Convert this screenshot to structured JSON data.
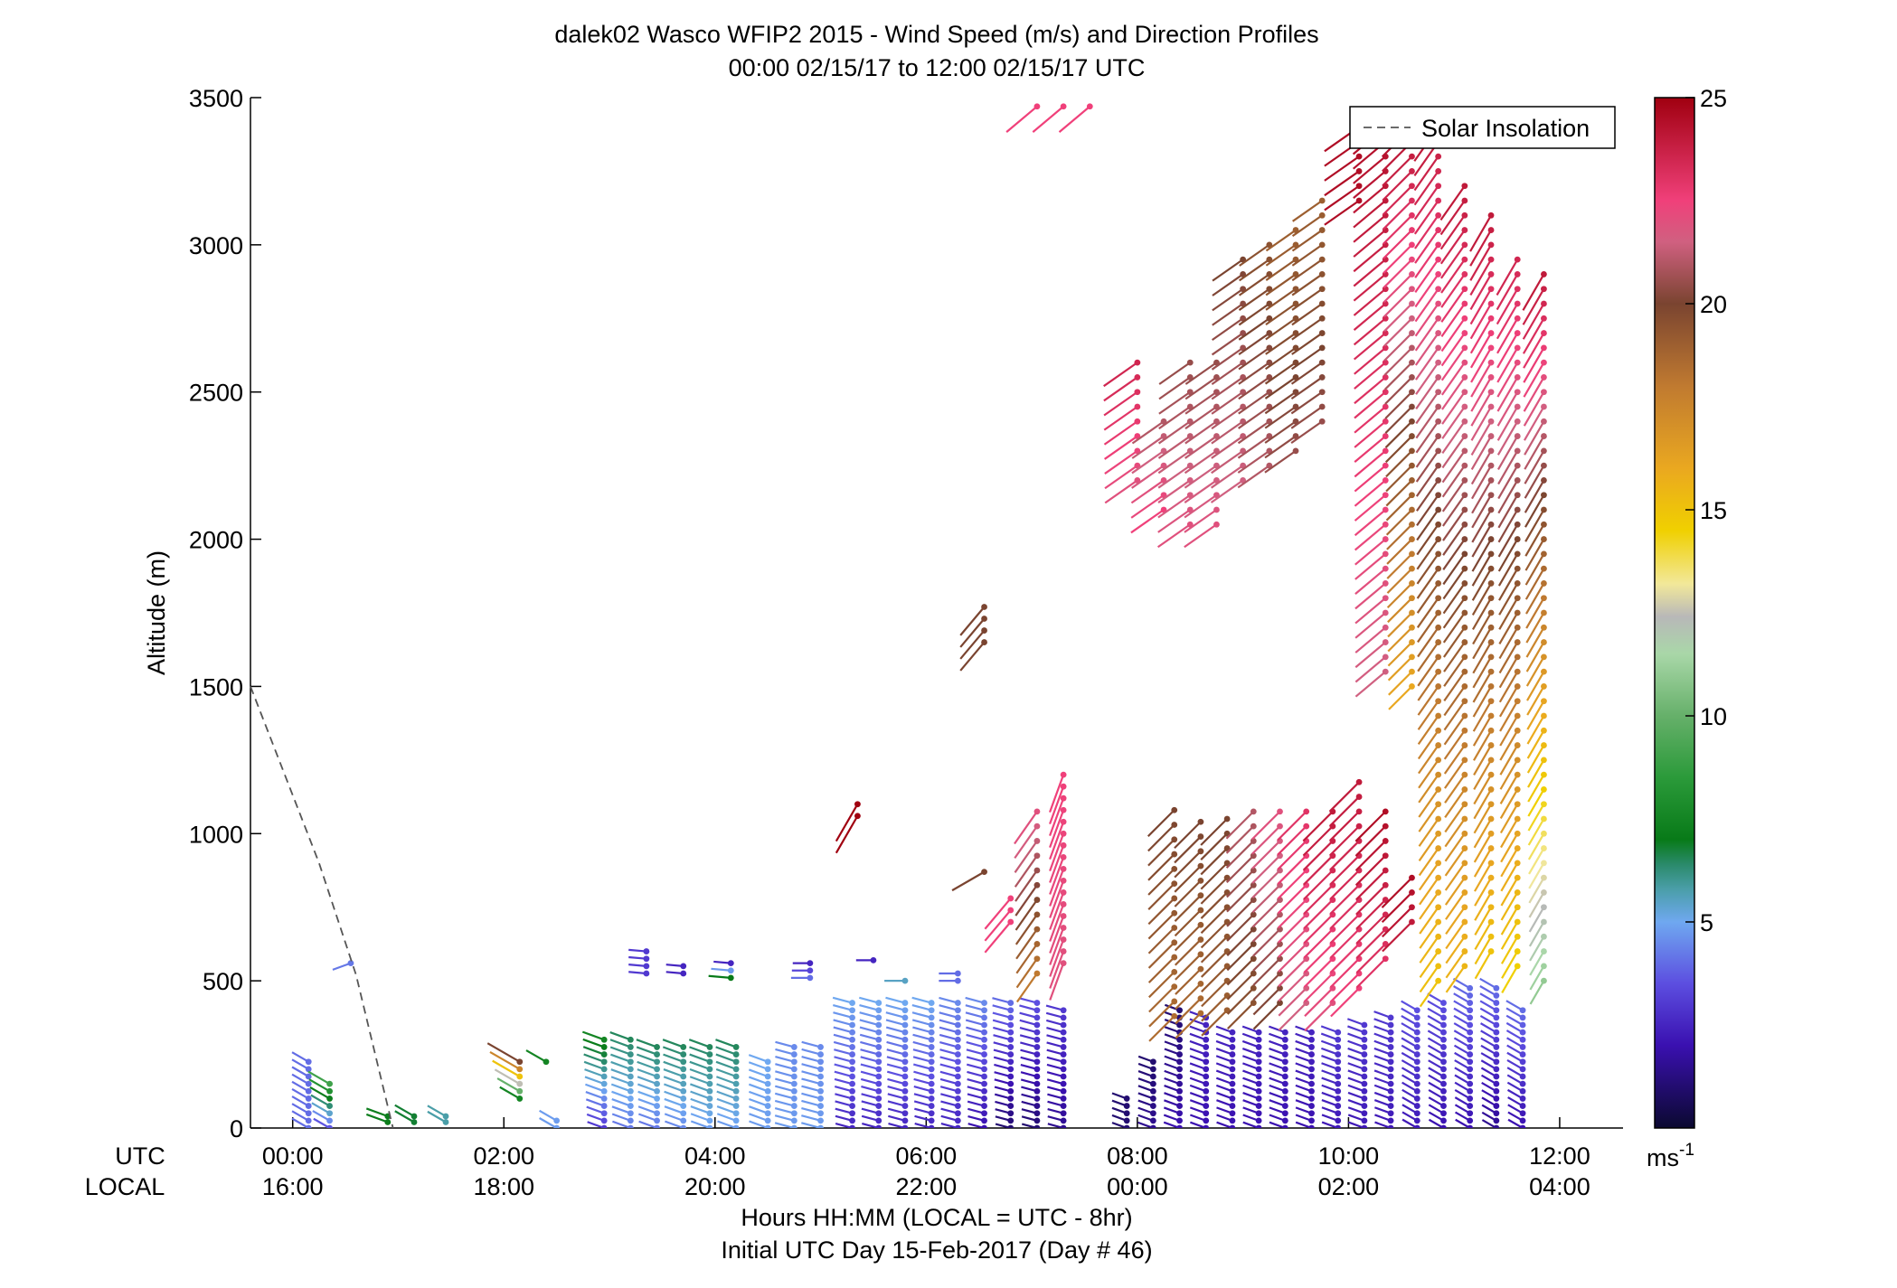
{
  "chart_data": {
    "type": "wind-barb-profile",
    "title": "dalek02 Wasco WFIP2 2015 - Wind Speed (m/s) and Direction Profiles",
    "subtitle": "00:00 02/15/17 to 12:00 02/15/17  UTC",
    "ylabel": "Altitude (m)",
    "xlabel": "Hours HH:MM  (LOCAL = UTC - 8hr)",
    "xlabel2": "Initial UTC Day 15-Feb-2017 (Day # 46)",
    "row_label_utc": "UTC",
    "row_label_local": "LOCAL",
    "xlim_hours": [
      -0.4,
      12.6
    ],
    "ylim": [
      0,
      3500
    ],
    "y_ticks": [
      0,
      500,
      1000,
      1500,
      2000,
      2500,
      3000,
      3500
    ],
    "x_tick_hours": [
      0,
      2,
      4,
      6,
      8,
      10,
      12
    ],
    "x_ticks_utc": [
      "00:00",
      "02:00",
      "04:00",
      "06:00",
      "08:00",
      "10:00",
      "12:00"
    ],
    "x_ticks_local": [
      "16:00",
      "18:00",
      "20:00",
      "22:00",
      "00:00",
      "02:00",
      "04:00"
    ],
    "legend": {
      "label": "Solar Insolation",
      "placement": "top-right"
    },
    "solar_insolation": {
      "style": "dashed",
      "color": "#555555",
      "points": [
        [
          -0.4,
          1500
        ],
        [
          0.25,
          900
        ],
        [
          0.6,
          520
        ],
        [
          0.95,
          0
        ]
      ]
    },
    "colorbar": {
      "min": 0,
      "max": 25,
      "ticks": [
        5,
        10,
        15,
        20,
        25
      ],
      "unit_label": "ms",
      "unit_exponent": "-1",
      "stops": [
        {
          "v": 0,
          "c": "#0b0930"
        },
        {
          "v": 2,
          "c": "#3a10b0"
        },
        {
          "v": 3.5,
          "c": "#5c4ee0"
        },
        {
          "v": 5,
          "c": "#6fa8f0"
        },
        {
          "v": 5.8,
          "c": "#4a9ea8"
        },
        {
          "v": 6.4,
          "c": "#2a8a6a"
        },
        {
          "v": 7,
          "c": "#087a18"
        },
        {
          "v": 8.5,
          "c": "#2b9a3a"
        },
        {
          "v": 10,
          "c": "#66b06a"
        },
        {
          "v": 11.5,
          "c": "#a9d7a8"
        },
        {
          "v": 12.4,
          "c": "#b8b8b8"
        },
        {
          "v": 13.2,
          "c": "#f2e89a"
        },
        {
          "v": 14.5,
          "c": "#f0d000"
        },
        {
          "v": 16,
          "c": "#eaa820"
        },
        {
          "v": 18,
          "c": "#c07a30"
        },
        {
          "v": 20,
          "c": "#7a4430"
        },
        {
          "v": 21.5,
          "c": "#d06080"
        },
        {
          "v": 22.5,
          "c": "#f0407a"
        },
        {
          "v": 25,
          "c": "#a00010"
        }
      ]
    },
    "profiles": [
      {
        "t": 0.15,
        "min": 0,
        "max": 225,
        "step": 25,
        "base_speed": 4.0,
        "top_speed": 4.0,
        "dir": 300
      },
      {
        "t": 0.35,
        "min": 0,
        "max": 150,
        "step": 25,
        "base_speed": 3.6,
        "top_speed": 9.0,
        "dir": 300
      },
      {
        "t": 0.55,
        "min": 560,
        "max": 560,
        "step": 25,
        "base_speed": 4.2,
        "top_speed": 4.2,
        "dir": 250
      },
      {
        "t": 0.9,
        "min": 20,
        "max": 40,
        "step": 20,
        "base_speed": 7.2,
        "top_speed": 7.2,
        "dir": 290
      },
      {
        "t": 1.15,
        "min": 20,
        "max": 40,
        "step": 20,
        "base_speed": 6.8,
        "top_speed": 6.8,
        "dir": 300
      },
      {
        "t": 1.45,
        "min": 20,
        "max": 40,
        "step": 20,
        "base_speed": 5.8,
        "top_speed": 5.8,
        "dir": 300
      },
      {
        "t": 2.15,
        "min": 100,
        "max": 225,
        "step": 25,
        "base_speed": 7.5,
        "top_speed": 20.0,
        "dir": 300
      },
      {
        "t": 2.4,
        "min": 225,
        "max": 225,
        "step": 25,
        "base_speed": 7.5,
        "top_speed": 7.5,
        "dir": 300
      },
      {
        "t": 2.5,
        "min": 0,
        "max": 25,
        "step": 25,
        "base_speed": 4.8,
        "top_speed": 4.8,
        "dir": 300
      },
      {
        "t": 2.95,
        "min": 0,
        "max": 300,
        "step": 25,
        "base_speed": 3.0,
        "top_speed": 7.5,
        "dir": 290
      },
      {
        "t": 3.2,
        "min": 0,
        "max": 300,
        "step": 25,
        "base_speed": 4.2,
        "top_speed": 6.5,
        "dir": 290
      },
      {
        "t": 3.45,
        "min": 0,
        "max": 275,
        "step": 25,
        "base_speed": 4.2,
        "top_speed": 6.5,
        "dir": 290
      },
      {
        "t": 3.7,
        "min": 0,
        "max": 275,
        "step": 25,
        "base_speed": 4.5,
        "top_speed": 6.5,
        "dir": 290
      },
      {
        "t": 3.95,
        "min": 0,
        "max": 275,
        "step": 25,
        "base_speed": 4.8,
        "top_speed": 6.5,
        "dir": 290
      },
      {
        "t": 4.2,
        "min": 0,
        "max": 275,
        "step": 25,
        "base_speed": 4.8,
        "top_speed": 6.5,
        "dir": 290
      },
      {
        "t": 4.5,
        "min": 0,
        "max": 225,
        "step": 25,
        "base_speed": 4.8,
        "top_speed": 5.0,
        "dir": 290
      },
      {
        "t": 4.75,
        "min": 0,
        "max": 275,
        "step": 25,
        "base_speed": 4.8,
        "top_speed": 4.5,
        "dir": 285
      },
      {
        "t": 5.0,
        "min": 0,
        "max": 275,
        "step": 25,
        "base_speed": 4.8,
        "top_speed": 4.5,
        "dir": 285
      },
      {
        "t": 5.3,
        "min": 0,
        "max": 425,
        "step": 25,
        "base_speed": 2.5,
        "top_speed": 5.0,
        "dir": 285
      },
      {
        "t": 5.55,
        "min": 0,
        "max": 425,
        "step": 25,
        "base_speed": 2.5,
        "top_speed": 5.0,
        "dir": 285
      },
      {
        "t": 5.8,
        "min": 0,
        "max": 425,
        "step": 25,
        "base_speed": 2.5,
        "top_speed": 5.0,
        "dir": 285
      },
      {
        "t": 6.05,
        "min": 0,
        "max": 425,
        "step": 25,
        "base_speed": 2.5,
        "top_speed": 5.0,
        "dir": 285
      },
      {
        "t": 6.3,
        "min": 0,
        "max": 425,
        "step": 25,
        "base_speed": 2.5,
        "top_speed": 4.5,
        "dir": 285
      },
      {
        "t": 6.55,
        "min": 0,
        "max": 425,
        "step": 25,
        "base_speed": 2.0,
        "top_speed": 4.5,
        "dir": 285
      },
      {
        "t": 6.8,
        "min": 0,
        "max": 425,
        "step": 25,
        "base_speed": 1.0,
        "top_speed": 4.0,
        "dir": 285
      },
      {
        "t": 7.05,
        "min": 0,
        "max": 425,
        "step": 25,
        "base_speed": 1.0,
        "top_speed": 3.5,
        "dir": 285
      },
      {
        "t": 7.3,
        "min": 0,
        "max": 400,
        "step": 25,
        "base_speed": 1.5,
        "top_speed": 3.0,
        "dir": 285
      },
      {
        "t": 3.35,
        "min": 525,
        "max": 600,
        "step": 25,
        "base_speed": 3.0,
        "top_speed": 3.0,
        "dir": 275
      },
      {
        "t": 3.7,
        "min": 525,
        "max": 560,
        "step": 25,
        "base_speed": 2.5,
        "top_speed": 2.5,
        "dir": 275
      },
      {
        "t": 4.15,
        "min": 510,
        "max": 560,
        "step": 25,
        "base_speed": 7.0,
        "top_speed": 2.5,
        "dir": 275
      },
      {
        "t": 4.9,
        "min": 510,
        "max": 570,
        "step": 25,
        "base_speed": 4.0,
        "top_speed": 2.5,
        "dir": 270
      },
      {
        "t": 5.5,
        "min": 570,
        "max": 570,
        "step": 25,
        "base_speed": 2.5,
        "top_speed": 2.5,
        "dir": 270
      },
      {
        "t": 5.8,
        "min": 500,
        "max": 500,
        "step": 25,
        "base_speed": 5.5,
        "top_speed": 5.5,
        "dir": 270
      },
      {
        "t": 6.3,
        "min": 500,
        "max": 525,
        "step": 25,
        "base_speed": 4.0,
        "top_speed": 4.0,
        "dir": 270
      },
      {
        "t": 5.35,
        "min": 1060,
        "max": 1100,
        "step": 40,
        "base_speed": 25.0,
        "top_speed": 25.0,
        "dir": 210
      },
      {
        "t": 6.55,
        "min": 1650,
        "max": 1770,
        "step": 40,
        "base_speed": 20.0,
        "top_speed": 20.0,
        "dir": 220
      },
      {
        "t": 6.55,
        "min": 870,
        "max": 870,
        "step": 25,
        "base_speed": 20.0,
        "top_speed": 20.0,
        "dir": 240
      },
      {
        "t": 6.8,
        "min": 700,
        "max": 780,
        "step": 40,
        "base_speed": 22.5,
        "top_speed": 22.5,
        "dir": 220
      },
      {
        "t": 7.05,
        "min": 525,
        "max": 1060,
        "step": 50,
        "base_speed": 18.0,
        "top_speed": 22.0,
        "dir": 215
      },
      {
        "t": 7.3,
        "min": 560,
        "max": 1200,
        "step": 40,
        "base_speed": 22.0,
        "top_speed": 22.5,
        "dir": 200
      },
      {
        "t": 7.05,
        "min": 3470,
        "max": 3470,
        "step": 25,
        "base_speed": 22.5,
        "top_speed": 22.5,
        "dir": 230
      },
      {
        "t": 7.3,
        "min": 3470,
        "max": 3470,
        "step": 25,
        "base_speed": 22.5,
        "top_speed": 22.5,
        "dir": 230
      },
      {
        "t": 7.55,
        "min": 3470,
        "max": 3470,
        "step": 25,
        "base_speed": 22.5,
        "top_speed": 22.5,
        "dir": 230
      },
      {
        "t": 7.9,
        "min": 0,
        "max": 100,
        "step": 25,
        "base_speed": 1.0,
        "top_speed": 1.0,
        "dir": 290
      },
      {
        "t": 8.15,
        "min": 0,
        "max": 225,
        "step": 25,
        "base_speed": 1.5,
        "top_speed": 1.0,
        "dir": 290
      },
      {
        "t": 8.4,
        "min": 0,
        "max": 400,
        "step": 25,
        "base_speed": 2.0,
        "top_speed": 1.0,
        "dir": 290
      },
      {
        "t": 8.65,
        "min": 0,
        "max": 375,
        "step": 25,
        "base_speed": 2.0,
        "top_speed": 2.5,
        "dir": 290
      },
      {
        "t": 8.9,
        "min": 0,
        "max": 325,
        "step": 25,
        "base_speed": 2.0,
        "top_speed": 2.5,
        "dir": 290
      },
      {
        "t": 9.15,
        "min": 0,
        "max": 325,
        "step": 25,
        "base_speed": 2.0,
        "top_speed": 2.5,
        "dir": 290
      },
      {
        "t": 9.4,
        "min": 0,
        "max": 325,
        "step": 25,
        "base_speed": 2.0,
        "top_speed": 2.5,
        "dir": 290
      },
      {
        "t": 9.65,
        "min": 0,
        "max": 325,
        "step": 25,
        "base_speed": 2.0,
        "top_speed": 2.5,
        "dir": 290
      },
      {
        "t": 9.9,
        "min": 0,
        "max": 325,
        "step": 25,
        "base_speed": 2.2,
        "top_speed": 3.0,
        "dir": 290
      },
      {
        "t": 10.15,
        "min": 0,
        "max": 350,
        "step": 25,
        "base_speed": 2.2,
        "top_speed": 3.0,
        "dir": 290
      },
      {
        "t": 10.4,
        "min": 0,
        "max": 375,
        "step": 25,
        "base_speed": 2.2,
        "top_speed": 3.0,
        "dir": 290
      },
      {
        "t": 10.65,
        "min": 0,
        "max": 400,
        "step": 25,
        "base_speed": 2.2,
        "top_speed": 3.5,
        "dir": 300
      },
      {
        "t": 10.9,
        "min": 0,
        "max": 425,
        "step": 25,
        "base_speed": 2.0,
        "top_speed": 3.5,
        "dir": 300
      },
      {
        "t": 11.15,
        "min": 0,
        "max": 475,
        "step": 25,
        "base_speed": 2.0,
        "top_speed": 4.0,
        "dir": 300
      },
      {
        "t": 11.4,
        "min": 0,
        "max": 475,
        "step": 25,
        "base_speed": 1.5,
        "top_speed": 4.0,
        "dir": 300
      },
      {
        "t": 11.65,
        "min": 0,
        "max": 400,
        "step": 25,
        "base_speed": 2.0,
        "top_speed": 4.0,
        "dir": 300
      },
      {
        "t": 8.35,
        "min": 380,
        "max": 1060,
        "step": 50,
        "base_speed": 18.5,
        "top_speed": 20.0,
        "dir": 225
      },
      {
        "t": 8.6,
        "min": 390,
        "max": 1060,
        "step": 50,
        "base_speed": 18.5,
        "top_speed": 20.0,
        "dir": 225
      },
      {
        "t": 8.85,
        "min": 400,
        "max": 1060,
        "step": 50,
        "base_speed": 19.0,
        "top_speed": 20.0,
        "dir": 225
      },
      {
        "t": 9.1,
        "min": 425,
        "max": 1060,
        "step": 50,
        "base_speed": 19.5,
        "top_speed": 21.0,
        "dir": 225
      },
      {
        "t": 9.35,
        "min": 425,
        "max": 1060,
        "step": 50,
        "base_speed": 20.0,
        "top_speed": 22.0,
        "dir": 225
      },
      {
        "t": 9.6,
        "min": 425,
        "max": 1060,
        "step": 50,
        "base_speed": 21.5,
        "top_speed": 23.0,
        "dir": 225
      },
      {
        "t": 9.85,
        "min": 425,
        "max": 1060,
        "step": 50,
        "base_speed": 22.0,
        "top_speed": 24.0,
        "dir": 225
      },
      {
        "t": 10.1,
        "min": 475,
        "max": 1150,
        "step": 50,
        "base_speed": 22.5,
        "top_speed": 24.0,
        "dir": 225
      },
      {
        "t": 10.35,
        "min": 575,
        "max": 1050,
        "step": 50,
        "base_speed": 23.0,
        "top_speed": 24.5,
        "dir": 225
      },
      {
        "t": 10.6,
        "min": 700,
        "max": 860,
        "step": 50,
        "base_speed": 24.0,
        "top_speed": 24.5,
        "dir": 225
      },
      {
        "t": 8.0,
        "min": 2200,
        "max": 2600,
        "step": 50,
        "base_speed": 22.0,
        "top_speed": 23.5,
        "dir": 235
      },
      {
        "t": 8.25,
        "min": 2100,
        "max": 2400,
        "step": 50,
        "base_speed": 22.5,
        "top_speed": 21.0,
        "dir": 235
      },
      {
        "t": 8.5,
        "min": 2050,
        "max": 2580,
        "step": 50,
        "base_speed": 22.0,
        "top_speed": 20.5,
        "dir": 235
      },
      {
        "t": 8.75,
        "min": 2050,
        "max": 2600,
        "step": 50,
        "base_speed": 22.0,
        "top_speed": 20.5,
        "dir": 235
      },
      {
        "t": 9.0,
        "min": 2200,
        "max": 2950,
        "step": 50,
        "base_speed": 21.5,
        "top_speed": 20.0,
        "dir": 235
      },
      {
        "t": 9.25,
        "min": 2250,
        "max": 3000,
        "step": 50,
        "base_speed": 21.0,
        "top_speed": 19.5,
        "dir": 235
      },
      {
        "t": 9.5,
        "min": 2300,
        "max": 3050,
        "step": 50,
        "base_speed": 20.5,
        "top_speed": 19.0,
        "dir": 235
      },
      {
        "t": 9.75,
        "min": 2400,
        "max": 3150,
        "step": 50,
        "base_speed": 20.5,
        "top_speed": 19.0,
        "dir": 235
      },
      {
        "t": 10.1,
        "min": 3150,
        "max": 3400,
        "step": 50,
        "base_speed": 24.5,
        "top_speed": 24.5,
        "dir": 235
      },
      {
        "t": 10.35,
        "min": 1550,
        "max": 3450,
        "step": 50,
        "base_speed": 21.5,
        "top_speed": 24.5,
        "dir": 230
      },
      {
        "t": 10.6,
        "min": 1500,
        "max": 3450,
        "step": 50,
        "base_speed": 16.0,
        "top_speed": 24.5,
        "dir": 225
      },
      {
        "t": 10.85,
        "min": 500,
        "max": 3400,
        "step": 50,
        "base_speed": 15.0,
        "top_speed": 24.0,
        "dir": 215
      },
      {
        "t": 11.1,
        "min": 550,
        "max": 3200,
        "step": 50,
        "base_speed": 15.5,
        "top_speed": 24.0,
        "dir": 215
      },
      {
        "t": 11.35,
        "min": 600,
        "max": 3100,
        "step": 50,
        "base_speed": 15.0,
        "top_speed": 24.0,
        "dir": 210
      },
      {
        "t": 11.6,
        "min": 550,
        "max": 2950,
        "step": 50,
        "base_speed": 14.5,
        "top_speed": 23.5,
        "dir": 210
      },
      {
        "t": 11.85,
        "min": 500,
        "max": 2900,
        "step": 50,
        "base_speed": 11.0,
        "top_speed": 24.0,
        "dir": 210
      }
    ]
  }
}
